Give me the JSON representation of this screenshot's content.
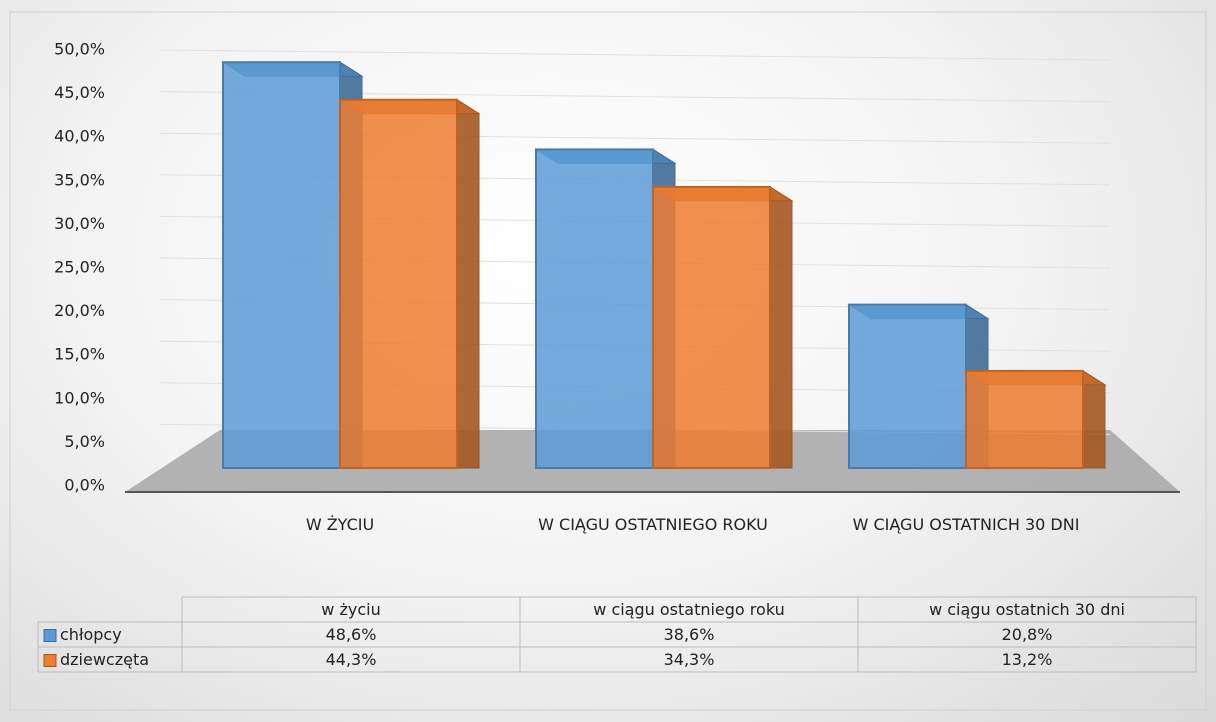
{
  "chart_data": {
    "type": "bar",
    "categories": [
      "W ŻYCIU",
      "W CIĄGU OSTATNIEGO ROKU",
      "W CIĄGU OSTATNICH 30 DNI"
    ],
    "table_categories": [
      "w życiu",
      "w ciągu ostatniego roku",
      "w ciągu ostatnich 30 dni"
    ],
    "series": [
      {
        "name": "chłopcy",
        "color": "#5b9bd5",
        "values": [
          48.6,
          38.6,
          20.8
        ],
        "value_labels": [
          "48,6%",
          "38,6%",
          "20,8%"
        ]
      },
      {
        "name": "dziewczęta",
        "color": "#ed7d31",
        "values": [
          44.3,
          34.3,
          13.2
        ],
        "value_labels": [
          "44,3%",
          "34,3%",
          "13,2%"
        ]
      }
    ],
    "ylim": [
      0,
      50
    ],
    "yticks": [
      {
        "value": 0,
        "label": "0,0%"
      },
      {
        "value": 5,
        "label": "5,0%"
      },
      {
        "value": 10,
        "label": "10,0%"
      },
      {
        "value": 15,
        "label": "15,0%"
      },
      {
        "value": 20,
        "label": "20,0%"
      },
      {
        "value": 25,
        "label": "25,0%"
      },
      {
        "value": 30,
        "label": "30,0%"
      },
      {
        "value": 35,
        "label": "35,0%"
      },
      {
        "value": 40,
        "label": "40,0%"
      },
      {
        "value": 45,
        "label": "45,0%"
      },
      {
        "value": 50,
        "label": "50,0%"
      }
    ],
    "grid": true
  }
}
